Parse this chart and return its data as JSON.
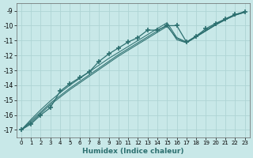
{
  "xlabel": "Humidex (Indice chaleur)",
  "background_color": "#c8e8e8",
  "grid_color": "#aed4d4",
  "line_color": "#2d7070",
  "xlim": [
    -0.5,
    23.5
  ],
  "ylim": [
    -17.5,
    -8.5
  ],
  "yticks": [
    -17,
    -16,
    -15,
    -14,
    -13,
    -12,
    -11,
    -10,
    -9
  ],
  "xticks": [
    0,
    1,
    2,
    3,
    4,
    5,
    6,
    7,
    8,
    9,
    10,
    11,
    12,
    13,
    14,
    15,
    16,
    17,
    18,
    19,
    20,
    21,
    22,
    23
  ],
  "marked_x": [
    0,
    1,
    2,
    3,
    4,
    5,
    6,
    7,
    8,
    9,
    10,
    11,
    12,
    13,
    14,
    15,
    16,
    17,
    18,
    19,
    20,
    21,
    22,
    23
  ],
  "marked_y": [
    -17.0,
    -16.6,
    -16.0,
    -15.5,
    -14.4,
    -13.9,
    -13.5,
    -13.1,
    -12.4,
    -11.9,
    -11.5,
    -11.1,
    -10.8,
    -10.3,
    -10.3,
    -10.0,
    -10.0,
    -11.1,
    -10.7,
    -10.2,
    -9.85,
    -9.55,
    -9.25,
    -9.1
  ],
  "line2_x": [
    0,
    1,
    2,
    3,
    4,
    5,
    6,
    7,
    8,
    9,
    10,
    11,
    12,
    13,
    14,
    15,
    16,
    17,
    18,
    19,
    20,
    21,
    22,
    23
  ],
  "line2_y": [
    -17.0,
    -16.5,
    -15.9,
    -15.3,
    -14.8,
    -14.3,
    -13.85,
    -13.4,
    -12.95,
    -12.5,
    -12.05,
    -11.65,
    -11.25,
    -10.85,
    -10.45,
    -10.05,
    -10.85,
    -11.15,
    -10.75,
    -10.35,
    -9.95,
    -9.6,
    -9.3,
    -9.1
  ],
  "line3_x": [
    0,
    1,
    2,
    3,
    4,
    5,
    6,
    7,
    8,
    9,
    10,
    11,
    12,
    13,
    14,
    15,
    16,
    17,
    18,
    19,
    20,
    21,
    22,
    23
  ],
  "line3_y": [
    -17.0,
    -16.4,
    -15.8,
    -15.2,
    -14.7,
    -14.2,
    -13.75,
    -13.3,
    -12.85,
    -12.4,
    -11.95,
    -11.55,
    -11.15,
    -10.75,
    -10.35,
    -9.95,
    -10.95,
    -11.15,
    -10.75,
    -10.35,
    -9.95,
    -9.6,
    -9.3,
    -9.1
  ],
  "line4_x": [
    0,
    1,
    2,
    3,
    4,
    5,
    6,
    7,
    8,
    9,
    10,
    11,
    12,
    13,
    14,
    15,
    16,
    17,
    18,
    19,
    20,
    21,
    22,
    23
  ],
  "line4_y": [
    -17.0,
    -16.3,
    -15.65,
    -15.05,
    -14.5,
    -14.0,
    -13.55,
    -13.1,
    -12.65,
    -12.2,
    -11.8,
    -11.4,
    -11.0,
    -10.6,
    -10.2,
    -9.8,
    -10.8,
    -11.1,
    -10.7,
    -10.3,
    -9.9,
    -9.55,
    -9.25,
    -9.05
  ]
}
